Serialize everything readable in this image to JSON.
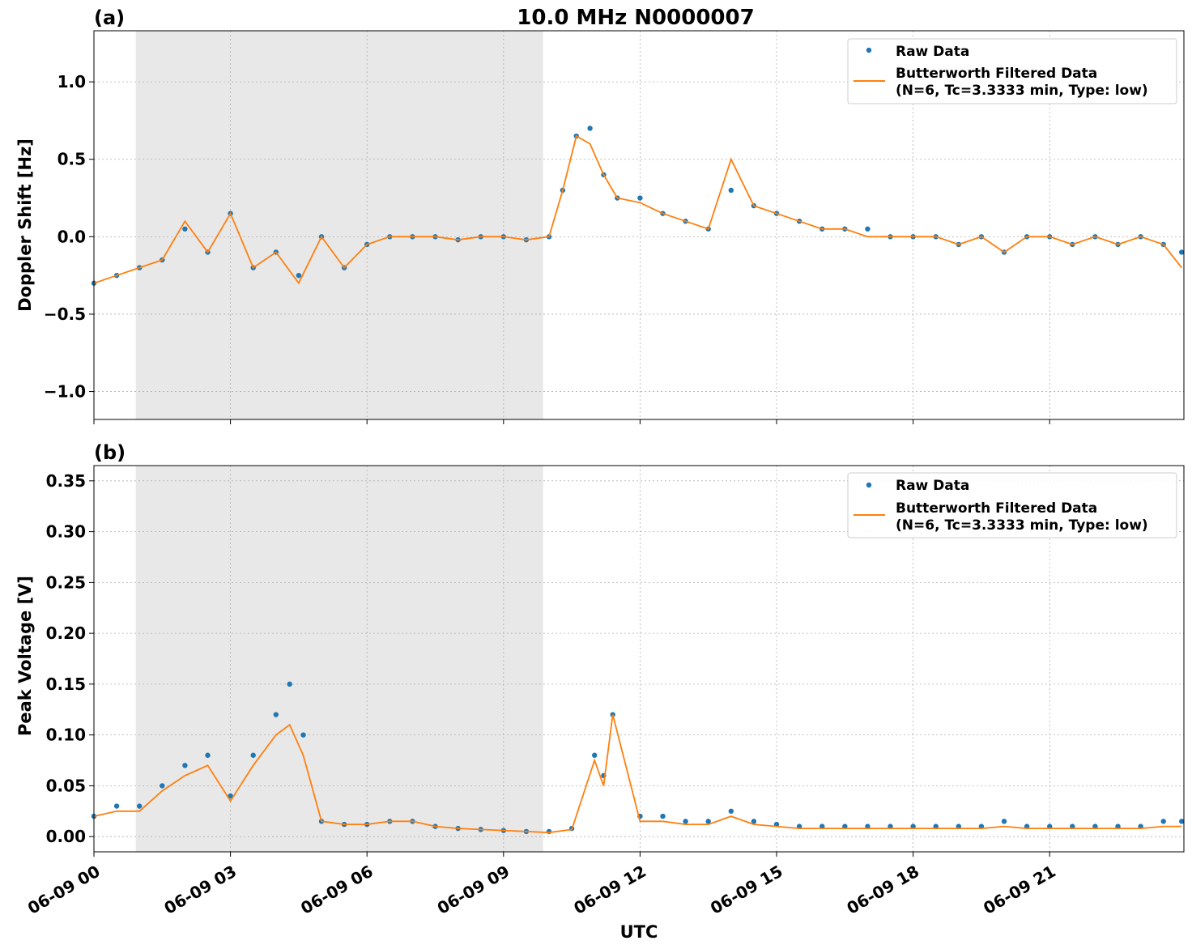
{
  "figure": {
    "title": "10.0 MHz N0000007",
    "xlabel": "UTC",
    "xtick_labels": [
      "06-09 00",
      "06-09 03",
      "06-09 06",
      "06-09 09",
      "06-09 12",
      "06-09 15",
      "06-09 18",
      "06-09 21"
    ],
    "colors": {
      "raw": "#1f77b4",
      "filtered": "#ff7f0e",
      "shade": "#e8e8e8",
      "grid": "#b0b0b0"
    }
  },
  "chart_data": [
    {
      "type": "scatter",
      "panel_label": "(a)",
      "ylabel": "Doppler Shift [Hz]",
      "xlim_hours": [
        0,
        23.95
      ],
      "ylim": [
        -1.18,
        1.33
      ],
      "yticks": [
        1.0,
        0.5,
        0.0,
        -0.5,
        -1.0
      ],
      "ytick_labels": [
        "1.0",
        "0.5",
        "0.0",
        "−0.5",
        "−1.0"
      ],
      "shaded_region_hours": [
        0.92,
        9.87
      ],
      "grid": true,
      "legend": {
        "placement": "top-right",
        "entries": [
          "Raw Data",
          "Butterworth Filtered Data",
          "(N=6, Tc=3.3333 min, Type: low)"
        ]
      },
      "series": [
        {
          "name": "Raw Data",
          "x": [
            0.0,
            0.5,
            1.0,
            1.5,
            2.0,
            2.5,
            3.0,
            3.5,
            4.0,
            4.5,
            5.0,
            5.5,
            6.0,
            6.5,
            7.0,
            7.5,
            8.0,
            8.5,
            9.0,
            9.5,
            10.0,
            10.3,
            10.6,
            10.9,
            11.2,
            11.5,
            12.0,
            12.5,
            13.0,
            13.5,
            14.0,
            14.5,
            15.0,
            15.5,
            16.0,
            16.5,
            17.0,
            17.5,
            18.0,
            18.5,
            19.0,
            19.5,
            20.0,
            20.5,
            21.0,
            21.5,
            22.0,
            22.5,
            23.0,
            23.5,
            23.9
          ],
          "y": [
            -0.3,
            -0.25,
            -0.2,
            -0.15,
            0.05,
            -0.1,
            0.15,
            -0.2,
            -0.1,
            -0.25,
            0.0,
            -0.2,
            -0.05,
            0.0,
            0.0,
            0.0,
            -0.02,
            0.0,
            0.0,
            -0.02,
            0.0,
            0.3,
            0.65,
            0.7,
            0.4,
            0.25,
            0.25,
            0.15,
            0.1,
            0.05,
            0.3,
            0.2,
            0.15,
            0.1,
            0.05,
            0.05,
            0.05,
            0.0,
            0.0,
            0.0,
            -0.05,
            0.0,
            -0.1,
            0.0,
            0.0,
            -0.05,
            0.0,
            -0.05,
            0.0,
            -0.05,
            -0.1
          ]
        },
        {
          "name": "Butterworth Filtered Data",
          "x": [
            0.0,
            0.5,
            1.0,
            1.5,
            2.0,
            2.5,
            3.0,
            3.5,
            4.0,
            4.5,
            5.0,
            5.5,
            6.0,
            6.5,
            7.0,
            7.5,
            8.0,
            8.5,
            9.0,
            9.5,
            10.0,
            10.3,
            10.6,
            10.9,
            11.2,
            11.5,
            12.0,
            12.5,
            13.0,
            13.5,
            14.0,
            14.5,
            15.0,
            15.5,
            16.0,
            16.5,
            17.0,
            17.5,
            18.0,
            18.5,
            19.0,
            19.5,
            20.0,
            20.5,
            21.0,
            21.5,
            22.0,
            22.5,
            23.0,
            23.5,
            23.9
          ],
          "y": [
            -0.3,
            -0.25,
            -0.2,
            -0.15,
            0.1,
            -0.1,
            0.15,
            -0.2,
            -0.1,
            -0.3,
            0.0,
            -0.2,
            -0.05,
            0.0,
            0.0,
            0.0,
            -0.02,
            0.0,
            0.0,
            -0.02,
            0.0,
            0.3,
            0.65,
            0.6,
            0.4,
            0.25,
            0.22,
            0.15,
            0.1,
            0.05,
            0.5,
            0.2,
            0.15,
            0.1,
            0.05,
            0.05,
            0.0,
            0.0,
            0.0,
            0.0,
            -0.05,
            0.0,
            -0.1,
            0.0,
            0.0,
            -0.05,
            0.0,
            -0.05,
            0.0,
            -0.05,
            -0.2
          ]
        }
      ]
    },
    {
      "type": "scatter",
      "panel_label": "(b)",
      "ylabel": "Peak Voltage [V]",
      "xlim_hours": [
        0,
        23.95
      ],
      "ylim": [
        -0.015,
        0.365
      ],
      "yticks": [
        0.35,
        0.3,
        0.25,
        0.2,
        0.15,
        0.1,
        0.05,
        0.0
      ],
      "ytick_labels": [
        "0.35",
        "0.30",
        "0.25",
        "0.20",
        "0.15",
        "0.10",
        "0.05",
        "0.00"
      ],
      "shaded_region_hours": [
        0.92,
        9.87
      ],
      "grid": true,
      "legend": {
        "placement": "top-right",
        "entries": [
          "Raw Data",
          "Butterworth Filtered Data",
          "(N=6, Tc=3.3333 min, Type: low)"
        ]
      },
      "series": [
        {
          "name": "Raw Data",
          "x": [
            0.0,
            0.5,
            1.0,
            1.5,
            2.0,
            2.5,
            3.0,
            3.5,
            4.0,
            4.3,
            4.6,
            5.0,
            5.5,
            6.0,
            6.5,
            7.0,
            7.5,
            8.0,
            8.5,
            9.0,
            9.5,
            10.0,
            10.5,
            11.0,
            11.2,
            11.4,
            12.0,
            12.5,
            13.0,
            13.5,
            14.0,
            14.5,
            15.0,
            15.5,
            16.0,
            16.5,
            17.0,
            17.5,
            18.0,
            18.5,
            19.0,
            19.5,
            20.0,
            20.5,
            21.0,
            21.5,
            22.0,
            22.5,
            23.0,
            23.5,
            23.9
          ],
          "y": [
            0.02,
            0.03,
            0.03,
            0.05,
            0.07,
            0.08,
            0.04,
            0.08,
            0.12,
            0.15,
            0.1,
            0.015,
            0.012,
            0.012,
            0.015,
            0.015,
            0.01,
            0.008,
            0.007,
            0.006,
            0.005,
            0.005,
            0.008,
            0.08,
            0.06,
            0.12,
            0.02,
            0.02,
            0.015,
            0.015,
            0.025,
            0.015,
            0.012,
            0.01,
            0.01,
            0.01,
            0.01,
            0.01,
            0.01,
            0.01,
            0.01,
            0.01,
            0.015,
            0.01,
            0.01,
            0.01,
            0.01,
            0.01,
            0.01,
            0.015,
            0.015
          ]
        },
        {
          "name": "Butterworth Filtered Data",
          "x": [
            0.0,
            0.5,
            1.0,
            1.5,
            2.0,
            2.5,
            3.0,
            3.5,
            4.0,
            4.3,
            4.6,
            5.0,
            5.5,
            6.0,
            6.5,
            7.0,
            7.5,
            8.0,
            8.5,
            9.0,
            9.5,
            10.0,
            10.5,
            11.0,
            11.2,
            11.4,
            12.0,
            12.5,
            13.0,
            13.5,
            14.0,
            14.5,
            15.0,
            15.5,
            16.0,
            16.5,
            17.0,
            17.5,
            18.0,
            18.5,
            19.0,
            19.5,
            20.0,
            20.5,
            21.0,
            21.5,
            22.0,
            22.5,
            23.0,
            23.5,
            23.9
          ],
          "y": [
            0.02,
            0.025,
            0.025,
            0.045,
            0.06,
            0.07,
            0.035,
            0.07,
            0.1,
            0.11,
            0.08,
            0.015,
            0.012,
            0.012,
            0.015,
            0.015,
            0.01,
            0.008,
            0.007,
            0.006,
            0.005,
            0.004,
            0.007,
            0.075,
            0.05,
            0.12,
            0.015,
            0.015,
            0.012,
            0.012,
            0.02,
            0.012,
            0.01,
            0.008,
            0.008,
            0.008,
            0.008,
            0.008,
            0.008,
            0.008,
            0.008,
            0.008,
            0.01,
            0.008,
            0.008,
            0.008,
            0.008,
            0.008,
            0.008,
            0.01,
            0.01
          ]
        }
      ]
    }
  ]
}
